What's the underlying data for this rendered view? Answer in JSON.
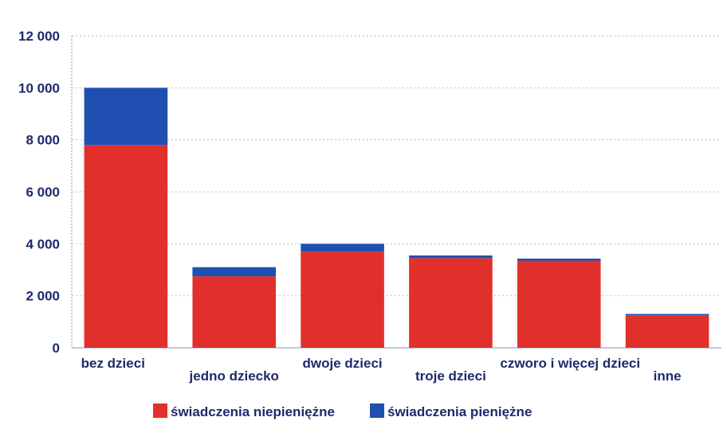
{
  "chart_data": {
    "type": "bar",
    "stacked": true,
    "categories": [
      "bez dzieci",
      "jedno dziecko",
      "dwoje dzieci",
      "troje dzieci",
      "czworo i więcej dzieci",
      "inne"
    ],
    "series": [
      {
        "name": "świadczenia niepieniężne",
        "color": "#e1302b",
        "values": [
          7800,
          2750,
          3700,
          3450,
          3350,
          1250
        ]
      },
      {
        "name": "świadczenia pieniężne",
        "color": "#1f4fb0",
        "values": [
          2200,
          350,
          300,
          100,
          80,
          50
        ]
      }
    ],
    "yticks": [
      "0",
      "2 000",
      "4 000",
      "6 000",
      "8 000",
      "10 000",
      "12 000"
    ],
    "ylim": [
      0,
      12000
    ],
    "grid": true,
    "legend_position": "bottom"
  }
}
